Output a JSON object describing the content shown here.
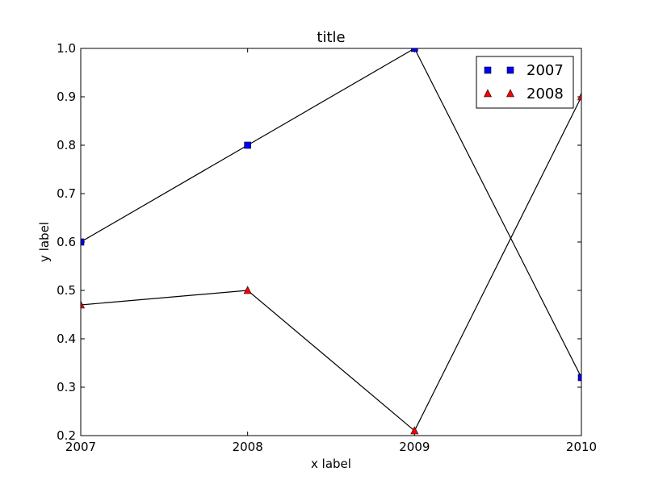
{
  "chart_data": {
    "type": "line",
    "title": "title",
    "xlabel": "x label",
    "ylabel": "y label",
    "x": [
      2007,
      2008,
      2009,
      2010
    ],
    "xlim": [
      2007,
      2010
    ],
    "ylim": [
      0.2,
      1.0
    ],
    "xticks": [
      "2007",
      "2008",
      "2009",
      "2010"
    ],
    "yticks": [
      "0.2",
      "0.3",
      "0.4",
      "0.5",
      "0.6",
      "0.7",
      "0.8",
      "0.9",
      "1.0"
    ],
    "grid": false,
    "legend_position": "top-right",
    "series": [
      {
        "name": "2007",
        "values": [
          0.6,
          0.8,
          1.0,
          0.32
        ],
        "marker": "square",
        "color": "#0000ff"
      },
      {
        "name": "2008",
        "values": [
          0.47,
          0.5,
          0.21,
          0.9
        ],
        "marker": "triangle",
        "color": "#ff0000"
      }
    ],
    "line_color": "#000000"
  }
}
